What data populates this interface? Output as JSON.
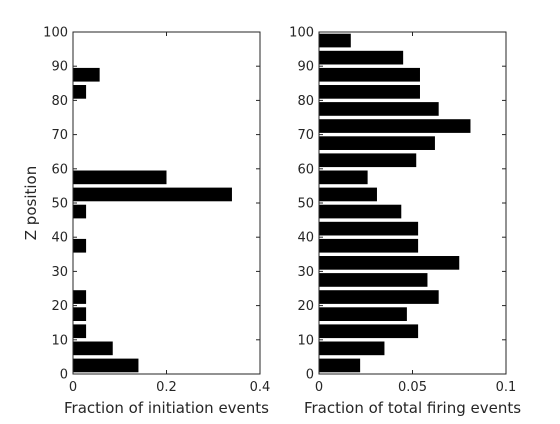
{
  "chart_data": [
    {
      "type": "bar",
      "orientation": "horizontal",
      "bar_color": "#000000",
      "xlabel": "Fraction of initiation events",
      "ylabel": "Z position",
      "xlim": [
        0,
        0.4
      ],
      "ylim": [
        0,
        100
      ],
      "xticks": [
        0,
        0.2,
        0.4
      ],
      "xtick_labels": [
        "0",
        "0.2",
        "0.4"
      ],
      "yticks": [
        0,
        10,
        20,
        30,
        40,
        50,
        60,
        70,
        80,
        90,
        100
      ],
      "ytick_labels": [
        "0",
        "10",
        "20",
        "30",
        "40",
        "50",
        "60",
        "70",
        "80",
        "90",
        "100"
      ],
      "grid": false,
      "bin_width": 5,
      "bin_centers": [
        2.5,
        7.5,
        12.5,
        17.5,
        22.5,
        27.5,
        32.5,
        37.5,
        42.5,
        47.5,
        52.5,
        57.5,
        62.5,
        67.5,
        72.5,
        77.5,
        82.5,
        87.5,
        92.5,
        97.5
      ],
      "values": [
        0.14,
        0.085,
        0.028,
        0.028,
        0.028,
        0,
        0,
        0.028,
        0,
        0.028,
        0.34,
        0.2,
        0,
        0,
        0,
        0,
        0.028,
        0.057,
        0,
        0
      ]
    },
    {
      "type": "bar",
      "orientation": "horizontal",
      "bar_color": "#000000",
      "xlabel": "Fraction of total firing events",
      "ylabel": "",
      "xlim": [
        0,
        0.1
      ],
      "ylim": [
        0,
        100
      ],
      "xticks": [
        0,
        0.05,
        0.1
      ],
      "xtick_labels": [
        "0",
        "0.05",
        "0.1"
      ],
      "yticks": [
        0,
        10,
        20,
        30,
        40,
        50,
        60,
        70,
        80,
        90,
        100
      ],
      "ytick_labels": [
        "0",
        "10",
        "20",
        "30",
        "40",
        "50",
        "60",
        "70",
        "80",
        "90",
        "100"
      ],
      "grid": false,
      "bin_width": 5,
      "bin_centers": [
        2.5,
        7.5,
        12.5,
        17.5,
        22.5,
        27.5,
        32.5,
        37.5,
        42.5,
        47.5,
        52.5,
        57.5,
        62.5,
        67.5,
        72.5,
        77.5,
        82.5,
        87.5,
        92.5,
        97.5
      ],
      "values": [
        0.022,
        0.035,
        0.053,
        0.047,
        0.064,
        0.058,
        0.075,
        0.053,
        0.053,
        0.044,
        0.031,
        0.026,
        0.052,
        0.062,
        0.081,
        0.064,
        0.054,
        0.054,
        0.045,
        0.017
      ]
    }
  ]
}
